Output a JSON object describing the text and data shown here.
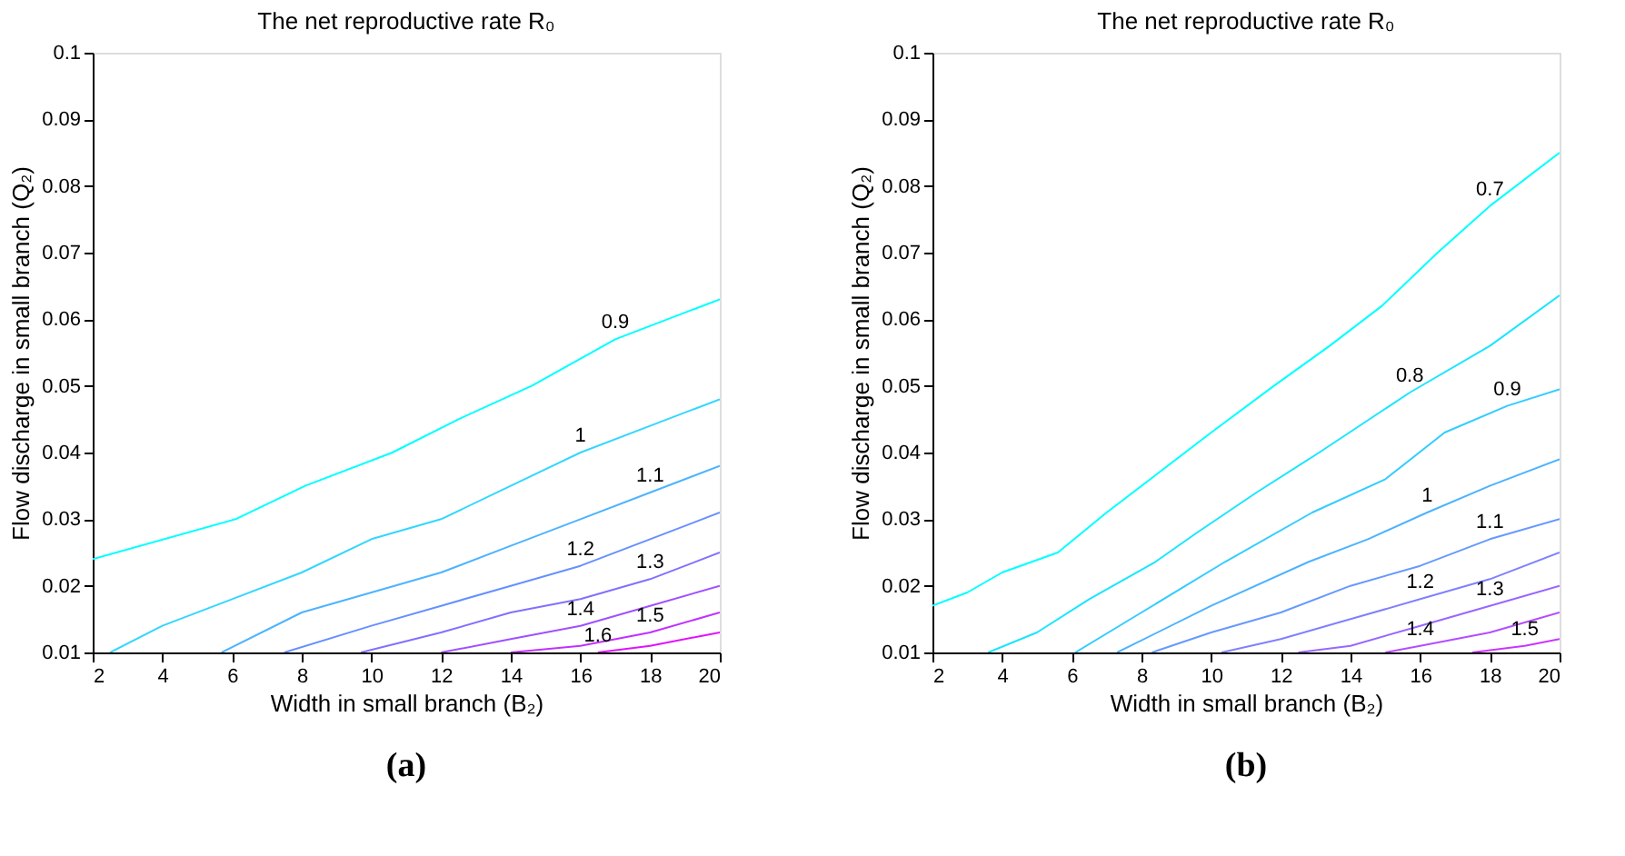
{
  "chart_data": [
    {
      "type": "line",
      "title": "The net reproductive rate R₀",
      "xlabel": "Width in small branch (B₂)",
      "ylabel": "Flow discharge in small branch (Q₂)",
      "xlim": [
        2,
        20
      ],
      "ylim": [
        0.01,
        0.1
      ],
      "xticks": [
        2,
        4,
        6,
        8,
        10,
        12,
        14,
        16,
        18,
        20
      ],
      "yticks": [
        0.01,
        0.02,
        0.03,
        0.04,
        0.05,
        0.06,
        0.07,
        0.08,
        0.09,
        0.1
      ],
      "grid": false,
      "legend": false,
      "marker": "none",
      "line_style": "solid",
      "annotations": [
        "(a)"
      ],
      "series": [
        {
          "name": "0.9",
          "color": "#00ffff",
          "x": [
            2,
            6.1,
            8.1,
            10.6,
            12.5,
            14.6,
            17,
            20
          ],
          "values": [
            0.024,
            0.03,
            0.035,
            0.04,
            0.045,
            0.05,
            0.057,
            0.063
          ]
        },
        {
          "name": "1",
          "color": "#33d6ff",
          "x": [
            2.5,
            4,
            6,
            8,
            10,
            12,
            14,
            16,
            18,
            20
          ],
          "values": [
            0.01,
            0.014,
            0.018,
            0.022,
            0.027,
            0.03,
            0.035,
            0.04,
            0.044,
            0.048
          ]
        },
        {
          "name": "1.1",
          "color": "#4db3ff",
          "x": [
            5.7,
            8,
            10,
            12,
            14,
            16,
            18,
            20
          ],
          "values": [
            0.01,
            0.016,
            0.019,
            0.022,
            0.026,
            0.03,
            0.034,
            0.038
          ]
        },
        {
          "name": "1.2",
          "color": "#6690ff",
          "x": [
            7.5,
            10,
            12,
            14,
            16,
            18,
            20
          ],
          "values": [
            0.01,
            0.014,
            0.017,
            0.02,
            0.023,
            0.027,
            0.031
          ]
        },
        {
          "name": "1.3",
          "color": "#8070ff",
          "x": [
            9.7,
            12,
            14,
            16,
            18,
            20
          ],
          "values": [
            0.01,
            0.013,
            0.016,
            0.018,
            0.021,
            0.025
          ]
        },
        {
          "name": "1.4",
          "color": "#a050ff",
          "x": [
            12,
            14,
            16,
            18,
            20
          ],
          "values": [
            0.01,
            0.012,
            0.014,
            0.017,
            0.02
          ]
        },
        {
          "name": "1.5",
          "color": "#c030ff",
          "x": [
            14,
            16,
            18,
            20
          ],
          "values": [
            0.01,
            0.011,
            0.013,
            0.016
          ]
        },
        {
          "name": "1.6",
          "color": "#e010ff",
          "x": [
            16.5,
            18,
            20
          ],
          "values": [
            0.01,
            0.011,
            0.013
          ]
        }
      ]
    },
    {
      "type": "line",
      "title": "The net reproductive rate R₀",
      "xlabel": "Width in small branch (B₂)",
      "ylabel": "Flow discharge in small branch (Q₂)",
      "xlim": [
        2,
        20
      ],
      "ylim": [
        0.01,
        0.1
      ],
      "xticks": [
        2,
        4,
        6,
        8,
        10,
        12,
        14,
        16,
        18,
        20
      ],
      "yticks": [
        0.01,
        0.02,
        0.03,
        0.04,
        0.05,
        0.06,
        0.07,
        0.08,
        0.09,
        0.1
      ],
      "grid": false,
      "legend": false,
      "marker": "none",
      "line_style": "solid",
      "annotations": [
        "(b)"
      ],
      "series": [
        {
          "name": "0.7",
          "color": "#00ffff",
          "x": [
            2,
            3,
            4,
            5.6,
            7,
            8.5,
            10,
            11.8,
            13.4,
            14.9,
            16.5,
            18,
            20
          ],
          "values": [
            0.017,
            0.019,
            0.022,
            0.025,
            0.031,
            0.037,
            0.043,
            0.05,
            0.056,
            0.062,
            0.07,
            0.077,
            0.085
          ]
        },
        {
          "name": "0.8",
          "color": "#1ae5ff",
          "x": [
            3.6,
            5,
            6.5,
            8.4,
            9.6,
            11.3,
            13.1,
            15.7,
            18,
            20
          ],
          "values": [
            0.01,
            0.013,
            0.018,
            0.0236,
            0.028,
            0.034,
            0.04,
            0.049,
            0.056,
            0.0636
          ]
        },
        {
          "name": "0.9",
          "color": "#33ccff",
          "x": [
            6.1,
            8,
            10.4,
            12.9,
            15,
            16.7,
            18.5,
            20
          ],
          "values": [
            0.01,
            0.016,
            0.0236,
            0.031,
            0.036,
            0.043,
            0.047,
            0.0495
          ]
        },
        {
          "name": "1",
          "color": "#4db3ff",
          "x": [
            7.3,
            10,
            12.8,
            14.5,
            16.2,
            18,
            20
          ],
          "values": [
            0.01,
            0.017,
            0.0236,
            0.027,
            0.031,
            0.035,
            0.039
          ]
        },
        {
          "name": "1.1",
          "color": "#6699ff",
          "x": [
            8.3,
            10,
            12,
            14,
            16,
            18,
            20
          ],
          "values": [
            0.01,
            0.013,
            0.016,
            0.02,
            0.023,
            0.027,
            0.03
          ]
        },
        {
          "name": "1.2",
          "color": "#8080ff",
          "x": [
            10.3,
            12,
            14,
            16,
            18,
            20
          ],
          "values": [
            0.01,
            0.012,
            0.015,
            0.018,
            0.021,
            0.025
          ]
        },
        {
          "name": "1.3",
          "color": "#9966ff",
          "x": [
            12.5,
            14,
            16,
            18,
            20
          ],
          "values": [
            0.01,
            0.011,
            0.014,
            0.017,
            0.02
          ]
        },
        {
          "name": "1.4",
          "color": "#b34dff",
          "x": [
            15,
            16,
            18,
            20
          ],
          "values": [
            0.01,
            0.011,
            0.013,
            0.016
          ]
        },
        {
          "name": "1.5",
          "color": "#cc33ff",
          "x": [
            17.5,
            19,
            20
          ],
          "values": [
            0.01,
            0.011,
            0.012
          ]
        }
      ]
    }
  ]
}
